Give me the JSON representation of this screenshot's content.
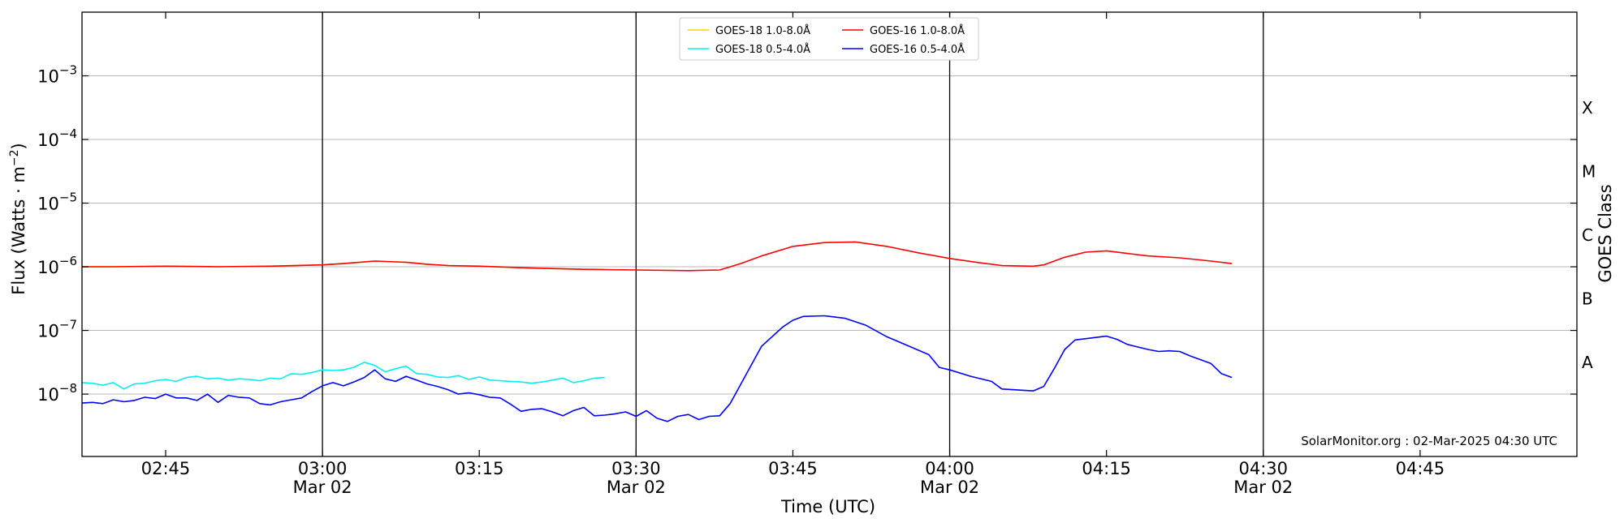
{
  "chart_data": {
    "type": "line",
    "xlabel": "Time (UTC)",
    "ylabel": "Flux (Watts · m",
    "ylabel_sup": "−2",
    "ylabel_end": ")",
    "right_label": "GOES Class",
    "x_range": [
      "02:37",
      "05:00"
    ],
    "y_log_range": [
      -8.98,
      -2.0
    ],
    "y_scale": "log",
    "y_ticks": [
      {
        "base": "10",
        "exp": "−3",
        "value": -3
      },
      {
        "base": "10",
        "exp": "−4",
        "value": -4
      },
      {
        "base": "10",
        "exp": "−5",
        "value": -5
      },
      {
        "base": "10",
        "exp": "−6",
        "value": -6
      },
      {
        "base": "10",
        "exp": "−7",
        "value": -7
      },
      {
        "base": "10",
        "exp": "−8",
        "value": -8
      }
    ],
    "x_ticks": [
      {
        "time": "02:45",
        "label": "02:45",
        "date": ""
      },
      {
        "time": "03:00",
        "label": "03:00",
        "date": "Mar 02"
      },
      {
        "time": "03:15",
        "label": "03:15",
        "date": ""
      },
      {
        "time": "03:30",
        "label": "03:30",
        "date": "Mar 02"
      },
      {
        "time": "03:45",
        "label": "03:45",
        "date": ""
      },
      {
        "time": "04:00",
        "label": "04:00",
        "date": "Mar 02"
      },
      {
        "time": "04:15",
        "label": "04:15",
        "date": ""
      },
      {
        "time": "04:30",
        "label": "04:30",
        "date": "Mar 02"
      },
      {
        "time": "04:45",
        "label": "04:45",
        "date": ""
      }
    ],
    "vertical_lines": [
      "03:00",
      "03:30",
      "04:00",
      "04:30"
    ],
    "grid": "horizontal",
    "goes_classes": [
      {
        "label": "X",
        "log_flux": -3.5
      },
      {
        "label": "M",
        "log_flux": -4.5
      },
      {
        "label": "C",
        "log_flux": -5.5
      },
      {
        "label": "B",
        "log_flux": -6.5
      },
      {
        "label": "A",
        "log_flux": -7.5
      }
    ],
    "legend_position": "top-center",
    "annotation": "SolarMonitor.org : 02-Mar-2025 04:30 UTC",
    "series": [
      {
        "name": "GOES-18 1.0-8.0Å",
        "color": "#ffd400",
        "x": [
          "02:37",
          "02:40",
          "02:45",
          "02:50",
          "02:55",
          "03:00",
          "03:02",
          "03:05",
          "03:08",
          "03:10",
          "03:12",
          "03:15",
          "03:20",
          "03:25",
          "03:27"
        ],
        "y": [
          -6.0,
          -6.0,
          -5.99,
          -6.0,
          -5.99,
          -5.97,
          -5.95,
          -5.91,
          -5.93,
          -5.96,
          -5.98,
          -5.99,
          -6.02,
          -6.04,
          -6.04
        ]
      },
      {
        "name": "GOES-18 0.5-4.0Å",
        "color": "#00f0f0",
        "x": [
          "02:37",
          "02:38",
          "02:39",
          "02:40",
          "02:41",
          "02:42",
          "02:43",
          "02:44",
          "02:45",
          "02:46",
          "02:47",
          "02:48",
          "02:49",
          "02:50",
          "02:51",
          "02:52",
          "02:53",
          "02:54",
          "02:55",
          "02:56",
          "02:57",
          "02:58",
          "02:59",
          "03:00",
          "03:01",
          "03:02",
          "03:03",
          "03:04",
          "03:05",
          "03:06",
          "03:07",
          "03:08",
          "03:09",
          "03:10",
          "03:11",
          "03:12",
          "03:13",
          "03:14",
          "03:15",
          "03:16",
          "03:17",
          "03:18",
          "03:19",
          "03:20",
          "03:21",
          "03:22",
          "03:23",
          "03:24",
          "03:25",
          "03:26",
          "03:27"
        ],
        "y": [
          -7.82,
          -7.83,
          -7.86,
          -7.82,
          -7.92,
          -7.84,
          -7.83,
          -7.79,
          -7.77,
          -7.8,
          -7.74,
          -7.72,
          -7.76,
          -7.75,
          -7.78,
          -7.76,
          -7.77,
          -7.79,
          -7.75,
          -7.76,
          -7.68,
          -7.69,
          -7.66,
          -7.62,
          -7.63,
          -7.62,
          -7.58,
          -7.5,
          -7.55,
          -7.65,
          -7.6,
          -7.56,
          -7.68,
          -7.69,
          -7.73,
          -7.74,
          -7.71,
          -7.77,
          -7.73,
          -7.78,
          -7.79,
          -7.8,
          -7.81,
          -7.83,
          -7.81,
          -7.78,
          -7.75,
          -7.82,
          -7.79,
          -7.75,
          -7.74
        ]
      },
      {
        "name": "GOES-16 1.0-8.0Å",
        "color": "#ff0000",
        "x": [
          "02:37",
          "02:40",
          "02:45",
          "02:50",
          "02:55",
          "03:00",
          "03:02",
          "03:05",
          "03:08",
          "03:10",
          "03:12",
          "03:15",
          "03:20",
          "03:25",
          "03:30",
          "03:35",
          "03:38",
          "03:40",
          "03:42",
          "03:45",
          "03:48",
          "03:51",
          "03:54",
          "03:57",
          "04:00",
          "04:03",
          "04:05",
          "04:08",
          "04:09",
          "04:11",
          "04:13",
          "04:15",
          "04:17",
          "04:19",
          "04:22",
          "04:25",
          "04:27"
        ],
        "y": [
          -6.0,
          -6.0,
          -5.99,
          -6.0,
          -5.99,
          -5.97,
          -5.95,
          -5.91,
          -5.93,
          -5.96,
          -5.98,
          -5.99,
          -6.02,
          -6.04,
          -6.05,
          -6.06,
          -6.05,
          -5.95,
          -5.83,
          -5.68,
          -5.62,
          -5.61,
          -5.68,
          -5.78,
          -5.87,
          -5.94,
          -5.98,
          -5.99,
          -5.97,
          -5.85,
          -5.77,
          -5.75,
          -5.79,
          -5.83,
          -5.86,
          -5.91,
          -5.95
        ]
      },
      {
        "name": "GOES-16 0.5-4.0Å",
        "color": "#0000ff",
        "x": [
          "02:37",
          "02:38",
          "02:39",
          "02:40",
          "02:41",
          "02:42",
          "02:43",
          "02:44",
          "02:45",
          "02:46",
          "02:47",
          "02:48",
          "02:49",
          "02:50",
          "02:51",
          "02:52",
          "02:53",
          "02:54",
          "02:55",
          "02:56",
          "02:57",
          "02:58",
          "02:59",
          "03:00",
          "03:01",
          "03:02",
          "03:03",
          "03:04",
          "03:05",
          "03:06",
          "03:07",
          "03:08",
          "03:09",
          "03:10",
          "03:11",
          "03:12",
          "03:13",
          "03:14",
          "03:15",
          "03:16",
          "03:17",
          "03:18",
          "03:19",
          "03:20",
          "03:21",
          "03:22",
          "03:23",
          "03:24",
          "03:25",
          "03:26",
          "03:27",
          "03:28",
          "03:29",
          "03:30",
          "03:31",
          "03:32",
          "03:33",
          "03:34",
          "03:35",
          "03:36",
          "03:37",
          "03:38",
          "03:39",
          "03:40",
          "03:42",
          "03:44",
          "03:45",
          "03:46",
          "03:48",
          "03:50",
          "03:52",
          "03:54",
          "03:56",
          "03:58",
          "03:59",
          "04:00",
          "04:02",
          "04:04",
          "04:05",
          "04:06",
          "04:08",
          "04:09",
          "04:10",
          "04:11",
          "04:12",
          "04:15",
          "04:16",
          "04:17",
          "04:19",
          "04:20",
          "04:21",
          "04:22",
          "04:23",
          "04:25",
          "04:26",
          "04:27"
        ],
        "y": [
          -8.14,
          -8.13,
          -8.15,
          -8.09,
          -8.12,
          -8.1,
          -8.05,
          -8.07,
          -8.0,
          -8.06,
          -8.06,
          -8.1,
          -8.0,
          -8.13,
          -8.02,
          -8.05,
          -8.06,
          -8.15,
          -8.17,
          -8.12,
          -8.09,
          -8.06,
          -7.96,
          -7.87,
          -7.82,
          -7.87,
          -7.81,
          -7.74,
          -7.62,
          -7.76,
          -7.8,
          -7.72,
          -7.78,
          -7.84,
          -7.88,
          -7.93,
          -8.0,
          -7.98,
          -8.01,
          -8.05,
          -8.06,
          -8.16,
          -8.27,
          -8.24,
          -8.23,
          -8.28,
          -8.34,
          -8.26,
          -8.21,
          -8.34,
          -8.33,
          -8.31,
          -8.28,
          -8.35,
          -8.26,
          -8.38,
          -8.43,
          -8.35,
          -8.32,
          -8.4,
          -8.35,
          -8.34,
          -8.15,
          -7.85,
          -7.25,
          -6.95,
          -6.84,
          -6.78,
          -6.77,
          -6.81,
          -6.92,
          -7.1,
          -7.24,
          -7.38,
          -7.58,
          -7.62,
          -7.72,
          -7.8,
          -7.92,
          -7.93,
          -7.95,
          -7.88,
          -7.6,
          -7.3,
          -7.15,
          -7.09,
          -7.14,
          -7.22,
          -7.3,
          -7.33,
          -7.32,
          -7.33,
          -7.4,
          -7.52,
          -7.68,
          -7.74
        ]
      }
    ]
  }
}
